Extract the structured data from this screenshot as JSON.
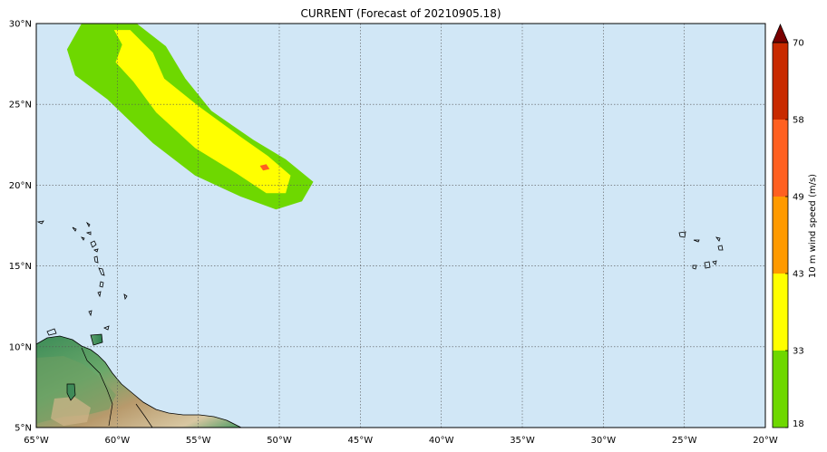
{
  "map": {
    "title": "CURRENT (Forecast of 20210905.18)",
    "lon_range": [
      -65,
      -20
    ],
    "lat_range": [
      5,
      30
    ],
    "lon_ticks": [
      {
        "value": -65,
        "label": "65°W"
      },
      {
        "value": -60,
        "label": "60°W"
      },
      {
        "value": -55,
        "label": "55°W"
      },
      {
        "value": -50,
        "label": "50°W"
      },
      {
        "value": -45,
        "label": "45°W"
      },
      {
        "value": -40,
        "label": "40°W"
      },
      {
        "value": -35,
        "label": "35°W"
      },
      {
        "value": -30,
        "label": "30°W"
      },
      {
        "value": -25,
        "label": "25°W"
      },
      {
        "value": -20,
        "label": "20°W"
      }
    ],
    "lat_ticks": [
      {
        "value": 5,
        "label": "5°N"
      },
      {
        "value": 10,
        "label": "10°N"
      },
      {
        "value": 15,
        "label": "15°N"
      },
      {
        "value": 20,
        "label": "20°N"
      },
      {
        "value": 25,
        "label": "25°N"
      },
      {
        "value": 30,
        "label": "30°N"
      }
    ],
    "ocean_color": "#d1e7f6",
    "grid": "dotted"
  },
  "colorbar": {
    "title": "10 m wind speed (m/s)",
    "levels": [
      {
        "label": "18",
        "value": 18,
        "color": "#6ed800"
      },
      {
        "label": "33",
        "value": 33,
        "color": "#ffff00"
      },
      {
        "label": "43",
        "value": 43,
        "color": "#ff9a00"
      },
      {
        "label": "49",
        "value": 49,
        "color": "#ff6020"
      },
      {
        "label": "58",
        "value": 58,
        "color": "#c82a00"
      },
      {
        "label": "70",
        "value": 70,
        "color": "#7a0000"
      }
    ]
  },
  "chart_data": {
    "type": "heatmap",
    "title": "CURRENT (Forecast of 20210905.18)",
    "variable": "10 m wind speed (m/s)",
    "swaths": [
      {
        "threshold": 18,
        "color": "#6ed800",
        "polygon_lonlat": [
          [
            -62.2,
            30
          ],
          [
            -58.8,
            30
          ],
          [
            -57,
            28.6
          ],
          [
            -55.8,
            26.6
          ],
          [
            -54.2,
            24.6
          ],
          [
            -51.6,
            22.8
          ],
          [
            -49.6,
            21.6
          ],
          [
            -47.9,
            20.2
          ],
          [
            -48.6,
            19
          ],
          [
            -50.2,
            18.5
          ],
          [
            -52.4,
            19.3
          ],
          [
            -55.2,
            20.6
          ],
          [
            -57.8,
            22.6
          ],
          [
            -60.6,
            25.3
          ],
          [
            -62.6,
            26.8
          ],
          [
            -63.1,
            28.4
          ]
        ]
      },
      {
        "threshold": 33,
        "color": "#ffff00",
        "polygon_lonlat": [
          [
            -60.2,
            29.6
          ],
          [
            -59.2,
            29.6
          ],
          [
            -57.8,
            28.2
          ],
          [
            -57.1,
            26.6
          ],
          [
            -55,
            24.9
          ],
          [
            -52.4,
            23
          ],
          [
            -50.7,
            21.8
          ],
          [
            -49.3,
            20.6
          ],
          [
            -49.6,
            19.5
          ],
          [
            -50.8,
            19.5
          ],
          [
            -52.6,
            20.7
          ],
          [
            -55.2,
            22.3
          ],
          [
            -57.6,
            24.5
          ],
          [
            -59,
            26.4
          ],
          [
            -60.1,
            27.6
          ],
          [
            -59.7,
            28.7
          ]
        ]
      },
      {
        "threshold": 49,
        "color": "#ff6020",
        "polygon_lonlat": [
          [
            -51.2,
            21.2
          ],
          [
            -50.8,
            21.3
          ],
          [
            -50.6,
            21.0
          ],
          [
            -51.0,
            20.9
          ]
        ]
      }
    ]
  }
}
